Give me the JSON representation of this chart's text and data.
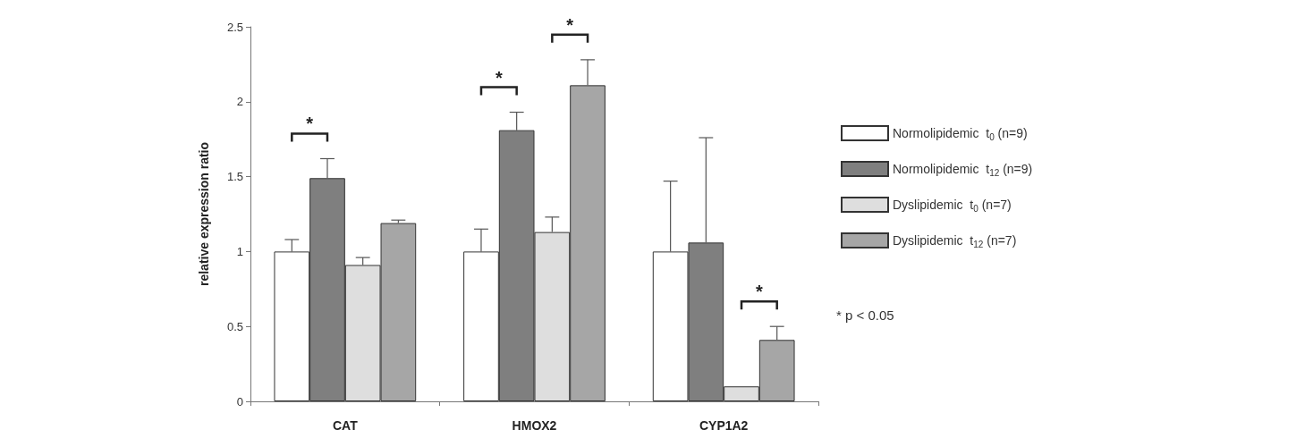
{
  "chart_data": {
    "type": "bar",
    "ylabel": "relative expression ratio",
    "categories": [
      "CAT",
      "HMOX2",
      "CYP1A2"
    ],
    "series": [
      {
        "name": "Normolipidemic  t$_{0}$ (n=9)",
        "color": "#ffffff",
        "values": [
          1,
          1,
          1
        ],
        "errors": [
          [
            1,
            1.08
          ],
          [
            1,
            1.15
          ],
          [
            1,
            1.47
          ]
        ]
      },
      {
        "name": "Normolipidemic  t$_{12}$ (n=9)",
        "color": "#7f7f7f",
        "values": [
          1.49,
          1.81,
          1.06
        ],
        "errors": [
          [
            1.49,
            1.62
          ],
          [
            1.81,
            1.93
          ],
          [
            1.06,
            1.76
          ]
        ]
      },
      {
        "name": "Dyslipidemic  t$_{0}$ (n=7)",
        "color": "#dedede",
        "values": [
          0.91,
          1.13,
          0.1
        ],
        "errors": [
          [
            0.91,
            0.96
          ],
          [
            1.13,
            1.23
          ],
          null
        ]
      },
      {
        "name": "Dyslipidemic  t$_{12}$ (n=7)",
        "color": "#a6a6a6",
        "values": [
          1.19,
          2.11,
          0.41
        ],
        "errors": [
          [
            1.19,
            1.21
          ],
          [
            2.11,
            2.28
          ],
          [
            0.41,
            0.5
          ]
        ]
      }
    ],
    "ylim": [
      0,
      2.5
    ],
    "yticks": [
      0,
      0.5,
      1,
      1.5,
      2,
      2.5
    ],
    "grid": false,
    "legend": "right",
    "annotations": [
      "*",
      "*",
      "*",
      "*",
      "* p < 0.05"
    ]
  }
}
